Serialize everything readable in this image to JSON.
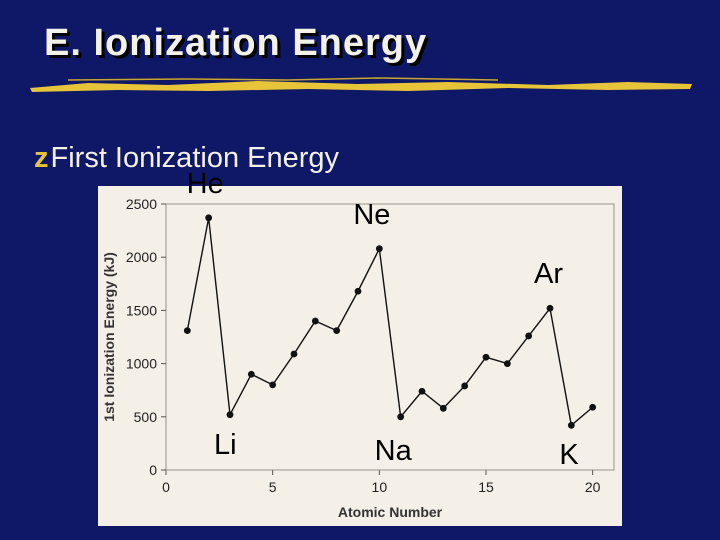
{
  "slide": {
    "title": "E. Ionization Energy",
    "bullet_text": "First Ionization Energy",
    "bullet_glyph": "z",
    "colors": {
      "background": "#0f1866",
      "title_text": "#f4f1e6",
      "underline": "#e8c438",
      "chart_panel": "#f4efe7",
      "series_line": "#000000"
    }
  },
  "chart_data": {
    "type": "line",
    "title": "",
    "xlabel": "Atomic Number",
    "ylabel": "1st Ionization Energy (kJ)",
    "xlim": [
      0,
      21
    ],
    "ylim": [
      0,
      2500
    ],
    "xticks": [
      0,
      5,
      10,
      15,
      20
    ],
    "yticks": [
      0,
      500,
      1000,
      1500,
      2000,
      2500
    ],
    "grid": false,
    "series": [
      {
        "x": [
          1,
          2,
          3,
          4,
          5,
          6,
          7,
          8,
          9,
          10,
          11,
          12,
          13,
          14,
          15,
          16,
          17,
          18,
          19,
          20
        ],
        "values": [
          1310,
          2370,
          520,
          900,
          800,
          1090,
          1400,
          1310,
          1680,
          2080,
          500,
          740,
          580,
          790,
          1060,
          1000,
          1260,
          1520,
          420,
          590
        ]
      }
    ],
    "annotations": [
      {
        "text": "He",
        "x": 2,
        "y": 2372
      },
      {
        "text": "Ne",
        "x": 10,
        "y": 2081
      },
      {
        "text": "Ar",
        "x": 18,
        "y": 1521
      },
      {
        "text": "Li",
        "x": 3,
        "y": 520
      },
      {
        "text": "Na",
        "x": 11,
        "y": 496
      },
      {
        "text": "K",
        "x": 19,
        "y": 419
      }
    ]
  }
}
